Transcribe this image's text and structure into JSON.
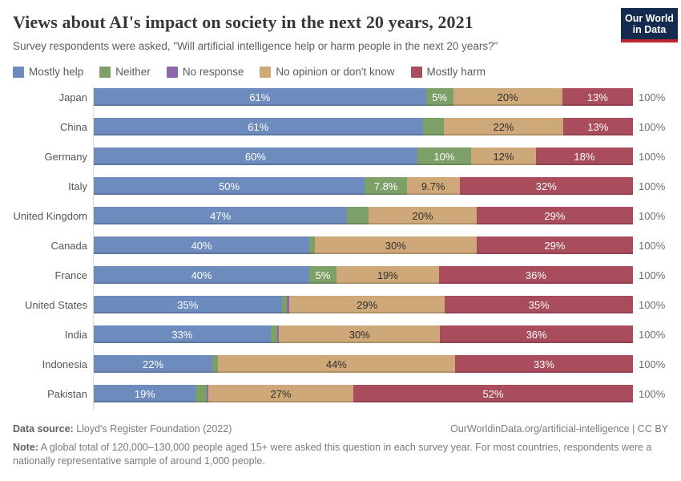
{
  "header": {
    "title": "Views about AI's impact on society in the next 20 years, 2021",
    "subtitle": "Survey respondents were asked, \"Will artificial intelligence help or harm people in the next 20 years?\"",
    "logo": {
      "line1": "Our World",
      "line2": "in Data"
    }
  },
  "colors": {
    "mostly_help": "#6d8bbd",
    "neither": "#7d9f68",
    "no_response": "#9066ad",
    "no_opinion": "#cea878",
    "mostly_harm": "#a94c5c",
    "logo_bg": "#142a4e",
    "logo_stripe": "#c0262e",
    "dark_label": "#2f2f2f",
    "light_label": "#ffffff"
  },
  "legend": [
    {
      "label": "Mostly help",
      "color": "#6d8bbd"
    },
    {
      "label": "Neither",
      "color": "#7d9f68"
    },
    {
      "label": "No response",
      "color": "#9066ad"
    },
    {
      "label": "No opinion or don't know",
      "color": "#cea878"
    },
    {
      "label": "Mostly harm",
      "color": "#a94c5c"
    }
  ],
  "chart_data": {
    "type": "bar",
    "orientation": "horizontal-stacked",
    "xlim": [
      0,
      100
    ],
    "row_total_label": "100%",
    "categories": [
      "Japan",
      "China",
      "Germany",
      "Italy",
      "United Kingdom",
      "Canada",
      "France",
      "United States",
      "India",
      "Indonesia",
      "Pakistan"
    ],
    "series": [
      {
        "name": "Mostly help",
        "color": "#6d8bbd",
        "label_color": "#ffffff",
        "values": [
          61,
          61,
          60,
          50,
          47,
          40,
          40,
          35,
          33,
          22,
          19
        ],
        "labels": [
          "61%",
          "61%",
          "60%",
          "50%",
          "47%",
          "40%",
          "40%",
          "35%",
          "33%",
          "22%",
          "19%"
        ]
      },
      {
        "name": "Neither",
        "color": "#7d9f68",
        "label_color": "#ffffff",
        "values": [
          5,
          4,
          10,
          7.8,
          4,
          1,
          5,
          1,
          1.3,
          1,
          2
        ],
        "labels": [
          "5%",
          "",
          "10%",
          "7.8%",
          "",
          "",
          "5%",
          "",
          "",
          "",
          ""
        ]
      },
      {
        "name": "No response",
        "color": "#9066ad",
        "label_color": "#ffffff",
        "values": [
          0,
          0,
          0,
          0,
          0,
          0,
          0,
          0.4,
          0.3,
          0,
          0.3
        ],
        "labels": [
          "",
          "",
          "",
          "",
          "",
          "",
          "",
          "",
          "",
          "",
          ""
        ]
      },
      {
        "name": "No opinion or don't know",
        "color": "#cea878",
        "label_color": "#2f2f2f",
        "values": [
          20,
          22,
          12,
          9.7,
          20,
          30,
          19,
          29,
          30,
          44,
          27
        ],
        "labels": [
          "20%",
          "22%",
          "12%",
          "9.7%",
          "20%",
          "30%",
          "19%",
          "29%",
          "30%",
          "44%",
          "27%"
        ]
      },
      {
        "name": "Mostly harm",
        "color": "#a94c5c",
        "label_color": "#ffffff",
        "values": [
          13,
          13,
          18,
          32,
          29,
          29,
          36,
          35,
          36,
          33,
          52
        ],
        "labels": [
          "13%",
          "13%",
          "18%",
          "32%",
          "29%",
          "29%",
          "36%",
          "35%",
          "36%",
          "33%",
          "52%"
        ]
      }
    ]
  },
  "footer": {
    "source_label": "Data source:",
    "source_text": " Lloyd's Register Foundation (2022)",
    "link_text": "OurWorldinData.org/artificial-intelligence | CC BY",
    "note_label": "Note:",
    "note_text": " A global total of 120,000–130,000 people aged 15+ were asked this question in each survey year. For most countries, respondents were a nationally representative sample of around 1,000 people."
  }
}
